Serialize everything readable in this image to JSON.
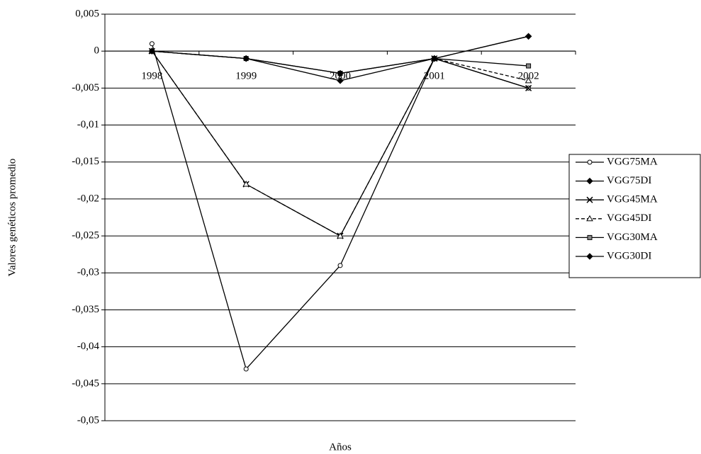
{
  "chart_data": {
    "type": "line",
    "x_label": "Años",
    "y_label": "Valores genéticos promedio",
    "categories": [
      "1998",
      "1999",
      "2000",
      "2001",
      "2002"
    ],
    "ylim": [
      -0.05,
      0.005
    ],
    "yticks": [
      {
        "value": 0.005,
        "label": "0,005"
      },
      0,
      {
        "value": -0.005,
        "label": "-0,005"
      },
      {
        "value": -0.01,
        "label": "-0,01"
      },
      {
        "value": -0.015,
        "label": "-0,015"
      },
      {
        "value": -0.02,
        "label": "-0,02"
      },
      {
        "value": -0.025,
        "label": "-0,025"
      },
      {
        "value": -0.03,
        "label": "-0,03"
      },
      {
        "value": -0.035,
        "label": "-0,035"
      },
      {
        "value": -0.04,
        "label": "-0,04"
      },
      {
        "value": -0.045,
        "label": "-0,045"
      },
      {
        "value": -0.05,
        "label": "-0,05"
      }
    ],
    "grid": true,
    "legend": "right",
    "series": [
      {
        "name": "VGG75MA",
        "color": "#000000",
        "marker": "circle",
        "dash": false,
        "values": [
          0.001,
          -0.043,
          -0.029,
          -0.001,
          -0.005
        ]
      },
      {
        "name": "VGG75DI",
        "color": "#000000",
        "marker": "diamond",
        "dash": false,
        "values": [
          0,
          -0.001,
          -0.004,
          -0.001,
          0.002
        ]
      },
      {
        "name": "VGG45MA",
        "color": "#000000",
        "marker": "x",
        "dash": false,
        "values": [
          0,
          -0.018,
          -0.025,
          -0.001,
          -0.005
        ]
      },
      {
        "name": "VGG45DI",
        "color": "#000000",
        "marker": "triangle",
        "dash": true,
        "values": [
          0,
          -0.018,
          -0.025,
          -0.001,
          -0.004
        ]
      },
      {
        "name": "VGG30MA",
        "color": "#000000",
        "marker": "square",
        "dash": false,
        "values": [
          0,
          -0.001,
          -0.003,
          -0.001,
          -0.002
        ]
      },
      {
        "name": "VGG30DI",
        "color": "#000000",
        "marker": "diamond",
        "dash": false,
        "values": [
          0,
          -0.001,
          -0.003,
          -0.001,
          0.002
        ]
      }
    ]
  }
}
